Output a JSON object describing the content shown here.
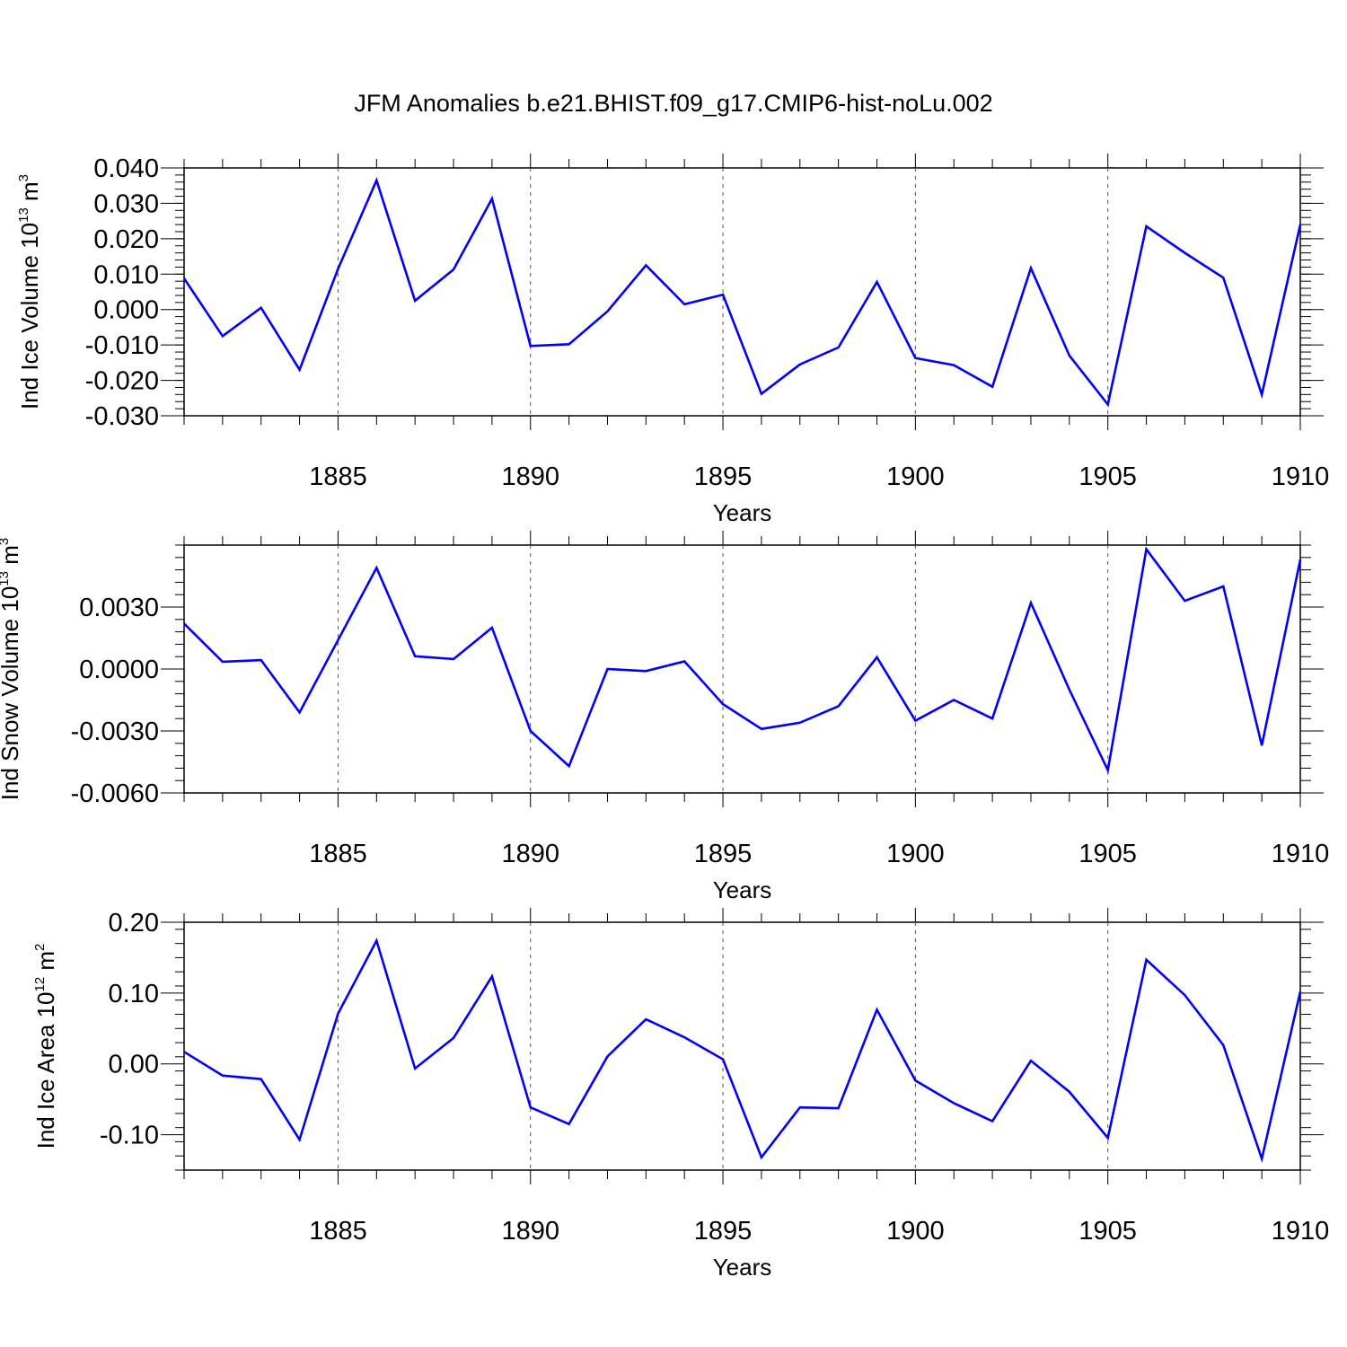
{
  "title": "JFM Anomalies b.e21.BHIST.f09_g17.CMIP6-hist-noLu.002",
  "chart_data": [
    {
      "type": "line",
      "ylabel_parts": [
        "Ind Ice Volume 10",
        "13",
        " m",
        "3"
      ],
      "xlabel": "Years",
      "xlim": [
        1881,
        1910
      ],
      "ylim": [
        -0.03,
        0.04
      ],
      "yticks": [
        -0.03,
        -0.02,
        -0.01,
        0.0,
        0.01,
        0.02,
        0.03,
        0.04
      ],
      "ytick_labels": [
        "-0.030",
        "-0.020",
        "-0.010",
        "0.000",
        "0.010",
        "0.020",
        "0.030",
        "0.040"
      ],
      "xticks": [
        1885,
        1890,
        1895,
        1900,
        1905,
        1910
      ],
      "xtick_labels": [
        "1885",
        "1890",
        "1895",
        "1900",
        "1905",
        "1910"
      ],
      "line_color": "#0000ff",
      "x": [
        1881,
        1882,
        1883,
        1884,
        1885,
        1886,
        1887,
        1888,
        1889,
        1890,
        1891,
        1892,
        1893,
        1894,
        1895,
        1896,
        1897,
        1898,
        1899,
        1900,
        1901,
        1902,
        1903,
        1904,
        1905,
        1906,
        1907,
        1908,
        1909,
        1910
      ],
      "values": [
        0.0088,
        -0.0075,
        0.0005,
        -0.017,
        0.0115,
        0.0365,
        0.0025,
        0.0113,
        0.0313,
        -0.0103,
        -0.0098,
        -0.0005,
        0.0125,
        0.0015,
        0.0042,
        -0.0238,
        -0.0155,
        -0.0107,
        0.0078,
        -0.0137,
        -0.0157,
        -0.0218,
        0.0117,
        -0.013,
        -0.0268,
        0.0235,
        0.016,
        0.009,
        -0.024,
        0.024
      ]
    },
    {
      "type": "line",
      "ylabel_parts": [
        "Ind Snow Volume 10",
        "13",
        " m",
        "3"
      ],
      "xlabel": "Years",
      "xlim": [
        1881,
        1910
      ],
      "ylim": [
        -0.006,
        0.006
      ],
      "yticks": [
        -0.006,
        -0.003,
        0.0,
        0.003
      ],
      "ytick_labels": [
        "-0.0060",
        "-0.0030",
        "0.0000",
        "0.0030"
      ],
      "xticks": [
        1885,
        1890,
        1895,
        1900,
        1905,
        1910
      ],
      "xtick_labels": [
        "1885",
        "1890",
        "1895",
        "1900",
        "1905",
        "1910"
      ],
      "line_color": "#0000ff",
      "x": [
        1881,
        1882,
        1883,
        1884,
        1885,
        1886,
        1887,
        1888,
        1889,
        1890,
        1891,
        1892,
        1893,
        1894,
        1895,
        1896,
        1897,
        1898,
        1899,
        1900,
        1901,
        1902,
        1903,
        1904,
        1905,
        1906,
        1907,
        1908,
        1909,
        1910
      ],
      "values": [
        0.0022,
        0.00035,
        0.00043,
        -0.0021,
        0.0014,
        0.0049,
        0.00062,
        0.00048,
        0.002,
        -0.003,
        -0.0047,
        0.0,
        -0.0001,
        0.00037,
        -0.0017,
        -0.0029,
        -0.0026,
        -0.0018,
        0.00057,
        -0.0025,
        -0.0015,
        -0.0024,
        0.0032,
        -0.001,
        -0.0049,
        0.0058,
        0.0033,
        0.004,
        -0.0037,
        0.0053
      ]
    },
    {
      "type": "line",
      "ylabel_parts": [
        "Ind Ice Area 10",
        "12",
        " m",
        "2"
      ],
      "xlabel": "Years",
      "xlim": [
        1881,
        1910
      ],
      "ylim": [
        -0.15,
        0.2
      ],
      "yticks": [
        -0.1,
        0.0,
        0.1,
        0.2
      ],
      "ytick_labels": [
        "-0.10",
        "0.00",
        "0.10",
        "0.20"
      ],
      "xticks": [
        1885,
        1890,
        1895,
        1900,
        1905,
        1910
      ],
      "xtick_labels": [
        "1885",
        "1890",
        "1895",
        "1900",
        "1905",
        "1910"
      ],
      "line_color": "#0000ff",
      "x": [
        1881,
        1882,
        1883,
        1884,
        1885,
        1886,
        1887,
        1888,
        1889,
        1890,
        1891,
        1892,
        1893,
        1894,
        1895,
        1896,
        1897,
        1898,
        1899,
        1900,
        1901,
        1902,
        1903,
        1904,
        1905,
        1906,
        1907,
        1908,
        1909,
        1910
      ],
      "values": [
        0.017,
        -0.0165,
        -0.0215,
        -0.107,
        0.071,
        0.174,
        -0.0065,
        0.0365,
        0.1235,
        -0.0615,
        -0.085,
        0.0105,
        0.063,
        0.0375,
        0.0065,
        -0.132,
        -0.0615,
        -0.0625,
        0.0765,
        -0.0235,
        -0.0555,
        -0.081,
        0.0045,
        -0.0395,
        -0.1045,
        0.147,
        0.097,
        0.0265,
        -0.134,
        0.102
      ]
    }
  ]
}
